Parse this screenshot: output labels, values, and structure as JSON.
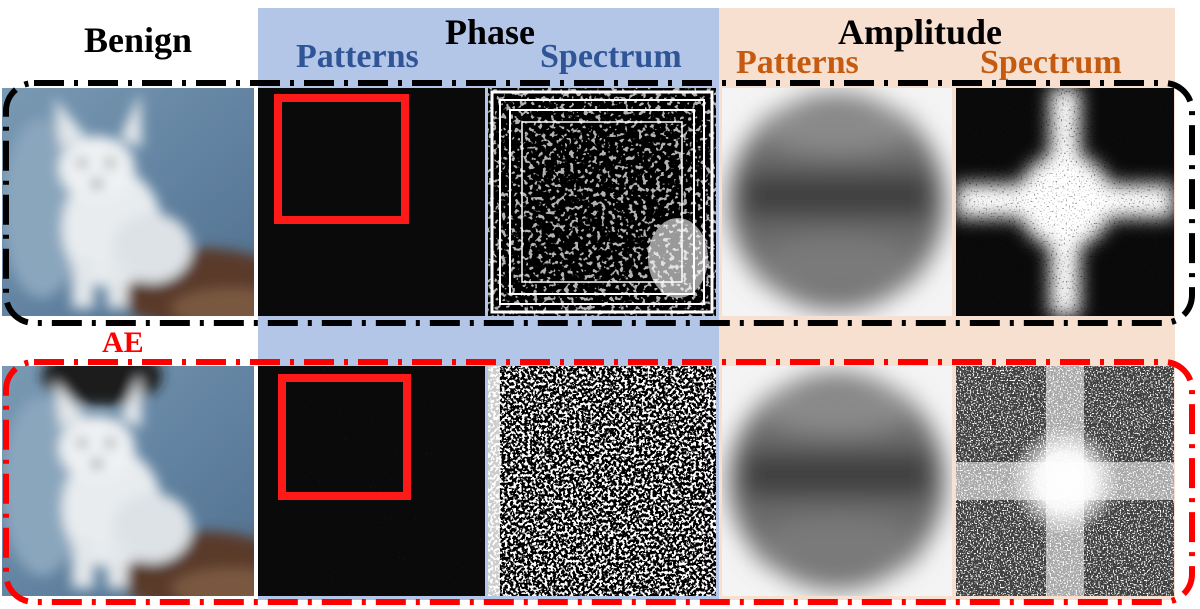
{
  "labels": {
    "benign": "Benign",
    "ae": "AE",
    "phase": "Phase",
    "amplitude": "Amplitude",
    "phase_patterns": "Patterns",
    "phase_spectrum": "Spectrum",
    "amp_patterns": "Patterns",
    "amp_spectrum": "Spectrum"
  },
  "colors": {
    "phase_band": "#b4c6e7",
    "amplitude_band": "#f8e0d0",
    "phase_text": "#2f5597",
    "amplitude_text": "#c55a11",
    "ae_text": "#ff0000",
    "benign_border": "#000000",
    "ae_border": "#ff0000",
    "highlight_box": "#ff0000"
  },
  "rows": [
    {
      "name": "benign",
      "cells": [
        "image",
        "phase-patterns",
        "phase-spectrum",
        "amplitude-patterns",
        "amplitude-spectrum"
      ]
    },
    {
      "name": "ae",
      "cells": [
        "image",
        "phase-patterns",
        "phase-spectrum",
        "amplitude-patterns",
        "amplitude-spectrum"
      ]
    }
  ]
}
